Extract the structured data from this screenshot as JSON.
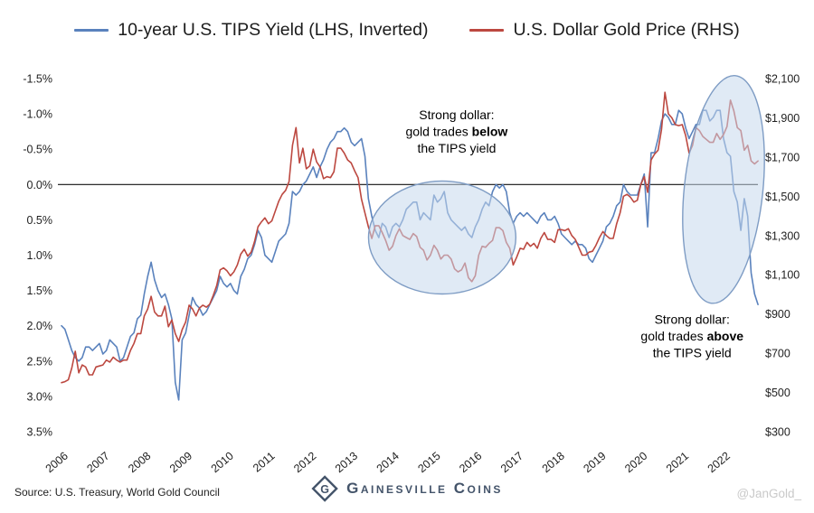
{
  "legend": {
    "items": [
      {
        "label": "10-year U.S. TIPS Yield (LHS, Inverted)",
        "color": "#5a82bd"
      },
      {
        "label": "U.S. Dollar Gold Price (RHS)",
        "color": "#bc4840"
      }
    ]
  },
  "footer": {
    "source": "Source: U.S. Treasury, World Gold Council",
    "logo_text": "Gainesville Coins",
    "logo_monogram": "G",
    "handle": "@JanGold_"
  },
  "chart_data": {
    "type": "line",
    "x_start_year": 2006,
    "x_step_months": 1,
    "x_ticks": [
      2006,
      2007,
      2008,
      2009,
      2010,
      2011,
      2012,
      2013,
      2014,
      2015,
      2016,
      2017,
      2018,
      2019,
      2020,
      2021,
      2022
    ],
    "left_axis": {
      "range": [
        -1.5,
        3.5
      ],
      "inverted": true,
      "tick_values": [
        -1.5,
        -1.0,
        -0.5,
        0.0,
        0.5,
        1.0,
        1.5,
        2.0,
        2.5,
        3.0,
        3.5
      ],
      "tick_labels": [
        "-1.5%",
        "-1.0%",
        "-0.5%",
        "0.0%",
        "0.5%",
        "1.0%",
        "1.5%",
        "2.0%",
        "2.5%",
        "3.0%",
        "3.5%"
      ]
    },
    "right_axis": {
      "range": [
        300,
        2100
      ],
      "tick_values": [
        2100,
        1900,
        1700,
        1500,
        1300,
        1100,
        900,
        700,
        500,
        300
      ],
      "tick_labels": [
        "$2,100",
        "$1,900",
        "$1,700",
        "$1,500",
        "$1,300",
        "$1,100",
        "$900",
        "$700",
        "$500",
        "$300"
      ]
    },
    "zero_line": {
      "value": 0.0,
      "color": "#111111"
    },
    "series": [
      {
        "name": "10-year U.S. TIPS Yield (LHS, Inverted)",
        "axis": "left",
        "color": "#5a82bd",
        "values": [
          2.0,
          2.05,
          2.2,
          2.35,
          2.45,
          2.5,
          2.45,
          2.3,
          2.3,
          2.35,
          2.3,
          2.25,
          2.4,
          2.35,
          2.2,
          2.25,
          2.3,
          2.5,
          2.45,
          2.3,
          2.15,
          2.1,
          1.9,
          1.85,
          1.55,
          1.3,
          1.1,
          1.35,
          1.5,
          1.6,
          1.55,
          1.7,
          1.9,
          2.8,
          3.05,
          2.2,
          2.1,
          1.85,
          1.6,
          1.7,
          1.75,
          1.85,
          1.8,
          1.7,
          1.6,
          1.5,
          1.3,
          1.4,
          1.45,
          1.4,
          1.5,
          1.55,
          1.3,
          1.2,
          1.05,
          1.0,
          0.85,
          0.65,
          0.75,
          1.0,
          1.05,
          1.1,
          0.95,
          0.8,
          0.75,
          0.7,
          0.55,
          0.1,
          0.15,
          0.1,
          0.0,
          -0.05,
          -0.15,
          -0.25,
          -0.1,
          -0.25,
          -0.35,
          -0.5,
          -0.6,
          -0.65,
          -0.75,
          -0.75,
          -0.8,
          -0.75,
          -0.6,
          -0.55,
          -0.6,
          -0.65,
          -0.4,
          0.2,
          0.45,
          0.65,
          0.75,
          0.55,
          0.6,
          0.75,
          0.6,
          0.55,
          0.6,
          0.5,
          0.35,
          0.3,
          0.25,
          0.25,
          0.5,
          0.4,
          0.45,
          0.5,
          0.15,
          0.25,
          0.2,
          0.1,
          0.4,
          0.5,
          0.55,
          0.6,
          0.65,
          0.6,
          0.7,
          0.75,
          0.6,
          0.5,
          0.35,
          0.25,
          0.3,
          0.1,
          0.0,
          0.05,
          0.0,
          0.1,
          0.4,
          0.55,
          0.45,
          0.4,
          0.45,
          0.4,
          0.45,
          0.5,
          0.55,
          0.45,
          0.4,
          0.5,
          0.5,
          0.45,
          0.55,
          0.7,
          0.75,
          0.8,
          0.85,
          0.8,
          0.85,
          0.85,
          0.9,
          1.05,
          1.1,
          1.0,
          0.9,
          0.8,
          0.6,
          0.55,
          0.45,
          0.3,
          0.25,
          0.0,
          0.1,
          0.15,
          0.15,
          0.15,
          0.0,
          -0.15,
          0.6,
          -0.45,
          -0.45,
          -0.65,
          -0.9,
          -1.0,
          -0.95,
          -0.85,
          -0.85,
          -1.05,
          -1.0,
          -0.8,
          -0.65,
          -0.75,
          -0.85,
          -0.85,
          -1.05,
          -1.05,
          -0.9,
          -0.95,
          -1.05,
          -1.05,
          -0.65,
          -0.45,
          -0.4,
          0.1,
          0.25,
          0.65,
          0.2,
          0.45,
          1.25,
          1.55,
          1.7
        ]
      },
      {
        "name": "U.S. Dollar Gold Price (RHS)",
        "axis": "right",
        "color": "#bc4840",
        "values": [
          550,
          555,
          565,
          625,
          710,
          600,
          640,
          630,
          590,
          590,
          630,
          635,
          640,
          665,
          655,
          680,
          665,
          655,
          665,
          665,
          715,
          750,
          800,
          800,
          890,
          925,
          990,
          910,
          890,
          890,
          940,
          835,
          870,
          800,
          760,
          820,
          860,
          945,
          925,
          890,
          930,
          945,
          935,
          950,
          995,
          1045,
          1125,
          1135,
          1120,
          1095,
          1115,
          1150,
          1205,
          1230,
          1195,
          1215,
          1270,
          1345,
          1370,
          1390,
          1360,
          1375,
          1425,
          1475,
          1510,
          1530,
          1575,
          1760,
          1850,
          1670,
          1745,
          1640,
          1655,
          1740,
          1675,
          1650,
          1590,
          1600,
          1595,
          1625,
          1745,
          1745,
          1720,
          1685,
          1670,
          1630,
          1595,
          1485,
          1415,
          1345,
          1285,
          1350,
          1350,
          1315,
          1275,
          1225,
          1245,
          1300,
          1335,
          1300,
          1290,
          1280,
          1310,
          1295,
          1240,
          1225,
          1175,
          1200,
          1250,
          1225,
          1180,
          1200,
          1200,
          1180,
          1130,
          1115,
          1125,
          1160,
          1085,
          1065,
          1095,
          1200,
          1245,
          1240,
          1260,
          1275,
          1340,
          1340,
          1325,
          1265,
          1235,
          1150,
          1190,
          1235,
          1230,
          1265,
          1245,
          1260,
          1235,
          1285,
          1315,
          1280,
          1280,
          1265,
          1330,
          1330,
          1325,
          1335,
          1300,
          1280,
          1240,
          1200,
          1200,
          1215,
          1220,
          1250,
          1290,
          1320,
          1300,
          1285,
          1285,
          1360,
          1415,
          1500,
          1510,
          1495,
          1470,
          1480,
          1560,
          1600,
          1520,
          1685,
          1715,
          1735,
          1840,
          2030,
          1920,
          1900,
          1865,
          1860,
          1865,
          1810,
          1720,
          1760,
          1850,
          1835,
          1805,
          1790,
          1775,
          1775,
          1820,
          1790,
          1815,
          1855,
          1990,
          1935,
          1850,
          1835,
          1735,
          1760,
          1680,
          1665,
          1680
        ]
      }
    ],
    "highlight_ellipses": [
      {
        "cx_year": 2015.2,
        "cy_yield": 0.75,
        "rx_years": 1.78,
        "ry_yield": 0.8,
        "rotate_deg": 0,
        "fill": "#c7d9ec",
        "fill_opacity": 0.55,
        "stroke": "#7e9cc4"
      },
      {
        "cx_year": 2022.0,
        "cy_yield": 0.07,
        "rx_years": 0.95,
        "ry_yield": 1.62,
        "rotate_deg": 6,
        "fill": "#c7d9ec",
        "fill_opacity": 0.55,
        "stroke": "#7e9cc4"
      }
    ],
    "annotations": [
      {
        "x_year": 2015.55,
        "y_yield": -0.69,
        "bold_word": "below",
        "lines": [
          "Strong dollar:",
          "gold trades below",
          "the TIPS yield"
        ]
      },
      {
        "x_year": 2021.24,
        "y_yield": 2.21,
        "bold_word": "above",
        "lines": [
          "Strong dollar:",
          "gold trades above",
          "the TIPS yield"
        ]
      }
    ]
  }
}
